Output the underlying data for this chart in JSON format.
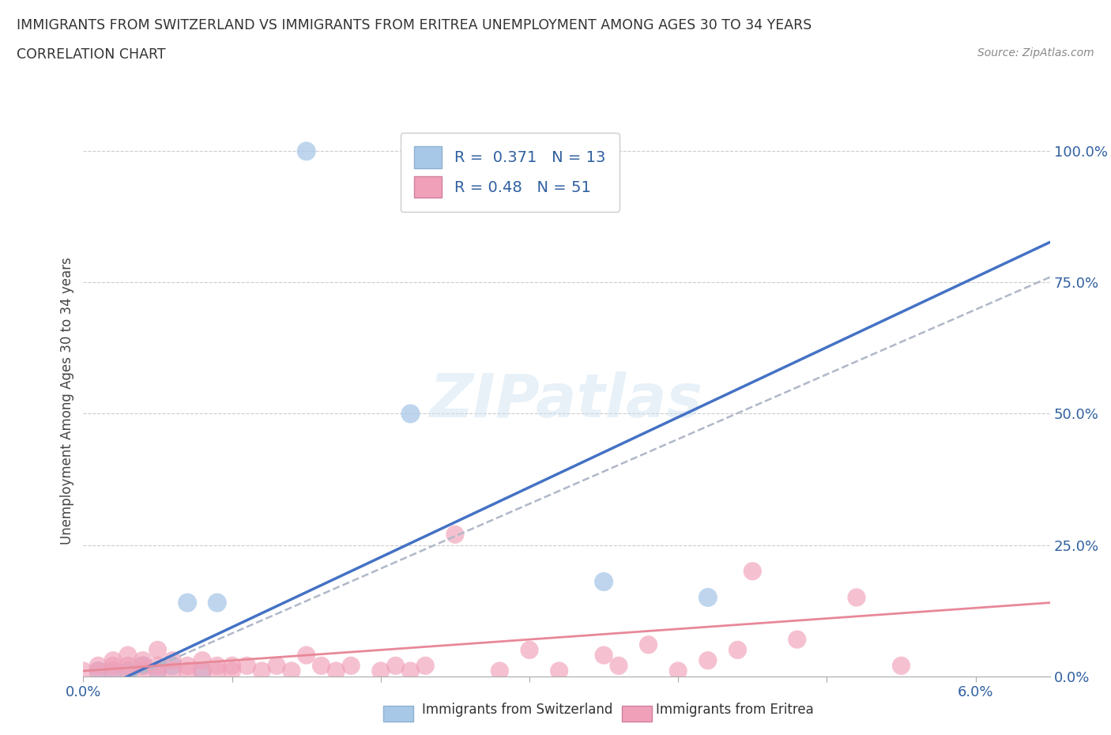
{
  "title_line1": "IMMIGRANTS FROM SWITZERLAND VS IMMIGRANTS FROM ERITREA UNEMPLOYMENT AMONG AGES 30 TO 34 YEARS",
  "title_line2": "CORRELATION CHART",
  "source_text": "Source: ZipAtlas.com",
  "ylabel_label": "Unemployment Among Ages 30 to 34 years",
  "xlim": [
    0.0,
    0.065
  ],
  "ylim": [
    0.0,
    1.05
  ],
  "x_ticks": [
    0.0,
    0.01,
    0.02,
    0.03,
    0.04,
    0.05,
    0.06
  ],
  "x_tick_labels": [
    "0.0%",
    "",
    "",
    "",
    "",
    "",
    "6.0%"
  ],
  "y_ticks": [
    0.0,
    0.25,
    0.5,
    0.75,
    1.0
  ],
  "y_tick_labels": [
    "0.0%",
    "25.0%",
    "50.0%",
    "75.0%",
    "100.0%"
  ],
  "R_swiss": 0.371,
  "N_swiss": 13,
  "R_eritrea": 0.48,
  "N_eritrea": 51,
  "color_swiss": "#a8c8e8",
  "color_eritrea": "#f0a0b8",
  "color_trend_swiss": "#4472c4",
  "color_trend_eritrea": "#b0b8c8",
  "color_trend_eritrea_solid": "#e88898",
  "swiss_x": [
    0.001,
    0.002,
    0.003,
    0.004,
    0.005,
    0.006,
    0.007,
    0.008,
    0.009,
    0.015,
    0.022,
    0.035,
    0.042
  ],
  "swiss_y": [
    0.01,
    0.01,
    0.01,
    0.02,
    0.01,
    0.02,
    0.14,
    0.01,
    0.14,
    1.0,
    0.5,
    0.18,
    0.15
  ],
  "eritrea_x": [
    0.0,
    0.001,
    0.001,
    0.002,
    0.002,
    0.002,
    0.003,
    0.003,
    0.003,
    0.004,
    0.004,
    0.004,
    0.005,
    0.005,
    0.005,
    0.006,
    0.006,
    0.007,
    0.007,
    0.008,
    0.008,
    0.009,
    0.009,
    0.01,
    0.01,
    0.011,
    0.012,
    0.013,
    0.014,
    0.015,
    0.016,
    0.017,
    0.018,
    0.02,
    0.021,
    0.022,
    0.023,
    0.025,
    0.028,
    0.03,
    0.032,
    0.035,
    0.036,
    0.038,
    0.04,
    0.042,
    0.044,
    0.045,
    0.048,
    0.052,
    0.055
  ],
  "eritrea_y": [
    0.01,
    0.01,
    0.02,
    0.01,
    0.02,
    0.03,
    0.01,
    0.02,
    0.04,
    0.01,
    0.02,
    0.03,
    0.01,
    0.02,
    0.05,
    0.01,
    0.03,
    0.01,
    0.02,
    0.01,
    0.03,
    0.01,
    0.02,
    0.01,
    0.02,
    0.02,
    0.01,
    0.02,
    0.01,
    0.04,
    0.02,
    0.01,
    0.02,
    0.01,
    0.02,
    0.01,
    0.02,
    0.27,
    0.01,
    0.05,
    0.01,
    0.04,
    0.02,
    0.06,
    0.01,
    0.03,
    0.05,
    0.2,
    0.07,
    0.15,
    0.02
  ],
  "watermark": "ZIPatlas",
  "legend_label_swiss": "Immigrants from Switzerland",
  "legend_label_eritrea": "Immigrants from Eritrea"
}
